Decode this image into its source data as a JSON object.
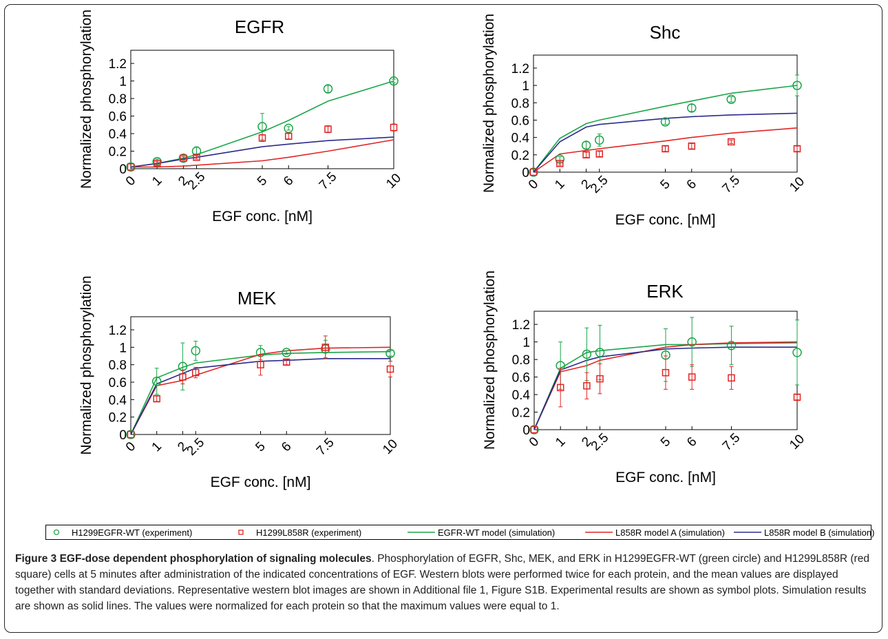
{
  "chart_data": [
    {
      "type": "line",
      "title": "EGFR",
      "xlabel": "EGF conc. [nM]",
      "ylabel": "Normalized phosphorylation",
      "xticks": [
        "0",
        "1",
        "2",
        "2.5",
        "5",
        "6",
        "7.5",
        "10"
      ],
      "yticks": [
        "0",
        "0.2",
        "0.4",
        "0.6",
        "0.8",
        "1",
        "1.2"
      ],
      "xlim": [
        0,
        10
      ],
      "ylim": [
        0,
        1.35
      ],
      "points": [
        {
          "name": "H1299EGFR-WT (experiment)",
          "x": [
            0,
            1,
            2,
            2.5,
            5,
            6,
            7.5,
            10
          ],
          "y": [
            0.02,
            0.08,
            0.12,
            0.2,
            0.48,
            0.46,
            0.91,
            1.0
          ],
          "err": [
            0.0,
            0.03,
            0.02,
            0.05,
            0.15,
            0.02,
            0.04,
            0.02
          ]
        },
        {
          "name": "H1299L858R (experiment)",
          "x": [
            0,
            1,
            2,
            2.5,
            5,
            6,
            7.5,
            10
          ],
          "y": [
            0.02,
            0.06,
            0.12,
            0.13,
            0.35,
            0.37,
            0.45,
            0.47
          ],
          "err": [
            0.0,
            0.02,
            0.02,
            0.02,
            0.04,
            0.03,
            0.04,
            0.04
          ]
        }
      ],
      "lines": [
        {
          "name": "EGFR-WT model (simulation)",
          "x": [
            0,
            1,
            2,
            2.5,
            5,
            6,
            7.5,
            10
          ],
          "y": [
            0.02,
            0.06,
            0.12,
            0.16,
            0.42,
            0.55,
            0.77,
            1.0
          ]
        },
        {
          "name": "L858R model A (simulation)",
          "x": [
            0,
            1,
            2,
            2.5,
            5,
            6,
            7.5,
            10
          ],
          "y": [
            0.02,
            0.02,
            0.03,
            0.04,
            0.09,
            0.13,
            0.2,
            0.33
          ]
        },
        {
          "name": "L858R model B (simulation)",
          "x": [
            0,
            1,
            2,
            2.5,
            5,
            6,
            7.5,
            10
          ],
          "y": [
            0.02,
            0.06,
            0.11,
            0.13,
            0.25,
            0.28,
            0.32,
            0.36
          ]
        }
      ]
    },
    {
      "type": "line",
      "title": "Shc",
      "xlabel": "EGF conc. [nM]",
      "ylabel": "Normalized phosphorylation",
      "xticks": [
        "0",
        "1",
        "2",
        "2.5",
        "5",
        "6",
        "7.5",
        "10"
      ],
      "yticks": [
        "0",
        "0.2",
        "0.4",
        "0.6",
        "0.8",
        "1",
        "1.2"
      ],
      "xlim": [
        0,
        10
      ],
      "ylim": [
        0,
        1.35
      ],
      "points": [
        {
          "name": "H1299EGFR-WT (experiment)",
          "x": [
            0,
            1,
            2,
            2.5,
            5,
            6,
            7.5,
            10
          ],
          "y": [
            0.0,
            0.15,
            0.31,
            0.37,
            0.58,
            0.74,
            0.84,
            1.0
          ],
          "err": [
            0.0,
            0.03,
            0.04,
            0.07,
            0.03,
            0.04,
            0.03,
            0.12
          ]
        },
        {
          "name": "H1299L858R (experiment)",
          "x": [
            0,
            1,
            2,
            2.5,
            5,
            6,
            7.5,
            10
          ],
          "y": [
            0.0,
            0.1,
            0.2,
            0.21,
            0.27,
            0.3,
            0.35,
            0.27
          ],
          "err": [
            0.0,
            0.02,
            0.03,
            0.03,
            0.03,
            0.03,
            0.02,
            0.03
          ]
        }
      ],
      "lines": [
        {
          "name": "EGFR-WT model (simulation)",
          "x": [
            0,
            1,
            2,
            2.5,
            5,
            6,
            7.5,
            10
          ],
          "y": [
            0.0,
            0.39,
            0.56,
            0.6,
            0.76,
            0.82,
            0.91,
            1.0
          ]
        },
        {
          "name": "L858R model A (simulation)",
          "x": [
            0,
            1,
            2,
            2.5,
            5,
            6,
            7.5,
            10
          ],
          "y": [
            0.0,
            0.21,
            0.25,
            0.27,
            0.36,
            0.4,
            0.45,
            0.51
          ]
        },
        {
          "name": "L858R model B (simulation)",
          "x": [
            0,
            1,
            2,
            2.5,
            5,
            6,
            7.5,
            10
          ],
          "y": [
            0.0,
            0.35,
            0.52,
            0.55,
            0.62,
            0.64,
            0.66,
            0.68
          ]
        }
      ]
    },
    {
      "type": "line",
      "title": "MEK",
      "xlabel": "EGF conc. [nM]",
      "ylabel": "Normalized phosphorylation",
      "xticks": [
        "0",
        "1",
        "2",
        "2.5",
        "5",
        "6",
        "7.5",
        "10"
      ],
      "yticks": [
        "0",
        "0.2",
        "0.4",
        "0.6",
        "0.8",
        "1",
        "1.2"
      ],
      "xlim": [
        0,
        10
      ],
      "ylim": [
        0,
        1.35
      ],
      "points": [
        {
          "name": "H1299EGFR-WT (experiment)",
          "x": [
            0,
            1,
            2,
            2.5,
            5,
            6,
            7.5,
            10
          ],
          "y": [
            0.0,
            0.61,
            0.78,
            0.96,
            0.94,
            0.94,
            0.98,
            0.93
          ],
          "err": [
            0.0,
            0.15,
            0.27,
            0.11,
            0.08,
            0.02,
            0.1,
            0.03
          ]
        },
        {
          "name": "H1299L858R (experiment)",
          "x": [
            0,
            1,
            2,
            2.5,
            5,
            6,
            7.5,
            10
          ],
          "y": [
            0.0,
            0.41,
            0.66,
            0.71,
            0.8,
            0.83,
            1.0,
            0.75
          ],
          "err": [
            0.0,
            0.03,
            0.08,
            0.06,
            0.12,
            0.03,
            0.13,
            0.09
          ]
        }
      ],
      "lines": [
        {
          "name": "EGFR-WT model (simulation)",
          "x": [
            0,
            1,
            2,
            2.5,
            5,
            6,
            7.5,
            10
          ],
          "y": [
            0.0,
            0.65,
            0.77,
            0.82,
            0.91,
            0.93,
            0.94,
            0.95
          ]
        },
        {
          "name": "L858R model A (simulation)",
          "x": [
            0,
            1,
            2,
            2.5,
            5,
            6,
            7.5,
            10
          ],
          "y": [
            0.0,
            0.56,
            0.62,
            0.68,
            0.92,
            0.96,
            0.99,
            1.0
          ]
        },
        {
          "name": "L858R model B (simulation)",
          "x": [
            0,
            1,
            2,
            2.5,
            5,
            6,
            7.5,
            10
          ],
          "y": [
            0.0,
            0.58,
            0.7,
            0.76,
            0.84,
            0.85,
            0.87,
            0.87
          ]
        }
      ]
    },
    {
      "type": "line",
      "title": "ERK",
      "xlabel": "EGF conc. [nM]",
      "ylabel": "Normalized phosphorylation",
      "xticks": [
        "0",
        "1",
        "2",
        "2.5",
        "5",
        "6",
        "7.5",
        "10"
      ],
      "yticks": [
        "0",
        "0.2",
        "0.4",
        "0.6",
        "0.8",
        "1",
        "1.2"
      ],
      "xlim": [
        0,
        10
      ],
      "ylim": [
        0,
        1.35
      ],
      "points": [
        {
          "name": "H1299EGFR-WT (experiment)",
          "x": [
            0,
            1,
            2,
            2.5,
            5,
            6,
            7.5,
            10
          ],
          "y": [
            0.0,
            0.73,
            0.86,
            0.88,
            0.85,
            1.0,
            0.96,
            0.88
          ],
          "err": [
            0.0,
            0.27,
            0.3,
            0.31,
            0.3,
            0.28,
            0.22,
            0.37
          ]
        },
        {
          "name": "H1299L858R (experiment)",
          "x": [
            0,
            1,
            2,
            2.5,
            5,
            6,
            7.5,
            10
          ],
          "y": [
            0.0,
            0.48,
            0.5,
            0.58,
            0.65,
            0.6,
            0.59,
            0.37
          ],
          "err": [
            0.0,
            0.22,
            0.15,
            0.17,
            0.19,
            0.14,
            0.13,
            0.03
          ]
        }
      ],
      "lines": [
        {
          "name": "EGFR-WT model (simulation)",
          "x": [
            0,
            1,
            2,
            2.5,
            5,
            6,
            7.5,
            10
          ],
          "y": [
            0.0,
            0.7,
            0.88,
            0.9,
            0.97,
            0.97,
            0.98,
            0.99
          ]
        },
        {
          "name": "L858R model A (simulation)",
          "x": [
            0,
            1,
            2,
            2.5,
            5,
            6,
            7.5,
            10
          ],
          "y": [
            0.0,
            0.66,
            0.73,
            0.79,
            0.94,
            0.97,
            0.99,
            1.0
          ]
        },
        {
          "name": "L858R model B (simulation)",
          "x": [
            0,
            1,
            2,
            2.5,
            5,
            6,
            7.5,
            10
          ],
          "y": [
            0.0,
            0.68,
            0.79,
            0.83,
            0.92,
            0.93,
            0.94,
            0.94
          ]
        }
      ]
    }
  ],
  "colors": {
    "wt": "#1aa548",
    "l858r": "#e02424",
    "modelB": "#2a2a8c"
  },
  "legend": {
    "items": [
      {
        "label": "H1299EGFR-WT (experiment)",
        "marker": "circle",
        "color": "#1aa548"
      },
      {
        "label": "H1299L858R (experiment)",
        "marker": "square",
        "color": "#e02424"
      },
      {
        "label": "EGFR-WT model (simulation)",
        "marker": "line",
        "color": "#1aa548"
      },
      {
        "label": "L858R model A (simulation)",
        "marker": "line",
        "color": "#e02424"
      },
      {
        "label": "L858R model B (simulation)",
        "marker": "line",
        "color": "#2a2a8c"
      }
    ]
  },
  "caption": {
    "label": "Figure 3 EGF-dose dependent phosphorylation of signaling molecules",
    "text": ". Phosphorylation of EGFR, Shc, MEK, and ERK in H1299EGFR-WT (green circle) and H1299L858R (red square) cells at 5 minutes after administration of the indicated concentrations of EGF. Western blots were performed twice for each protein, and the mean values are displayed together with standard deviations. Representative western blot images are shown in Additional file 1, Figure S1B. Experimental results are shown as symbol plots. Simulation results are shown as solid lines. The values were normalized for each protein so that the maximum values were equal to 1."
  }
}
